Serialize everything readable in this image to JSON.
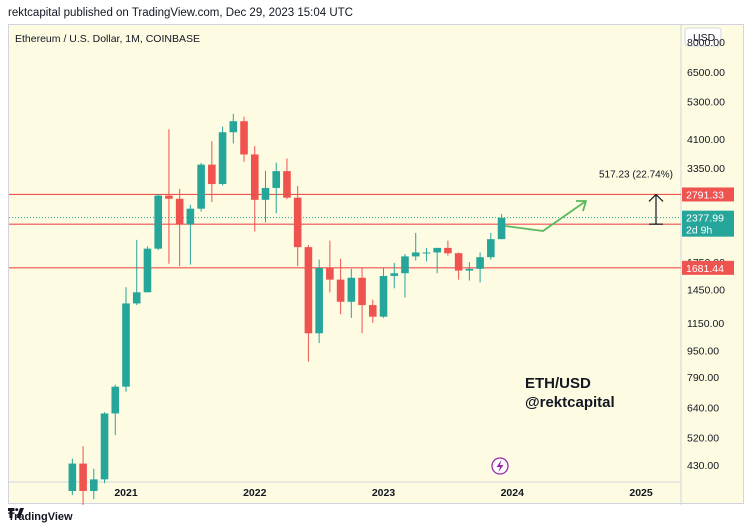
{
  "header": {
    "publish_line": "rektcapital published on TradingView.com, Dec 29, 2023 15:04 UTC"
  },
  "footer": {
    "brand": "TradingView"
  },
  "chart_data": {
    "type": "candlestick",
    "symbol_line": "Ethereum / U.S. Dollar, 1M, COINBASE",
    "currency": "USD",
    "y_scale": "log",
    "ylim": [
      370,
      9000
    ],
    "y_ticks": [
      8000,
      6500,
      5300,
      4100,
      3350,
      1450,
      1150,
      950,
      790,
      640,
      520,
      430
    ],
    "y_tick_labels": [
      "8000.00",
      "6500.00",
      "5300.00",
      "4100.00",
      "3350.00",
      "1450.00",
      "1150.00",
      "950.00",
      "790.00",
      "640.00",
      "520.00",
      "430.00"
    ],
    "x_ticks": [
      "2021",
      "2022",
      "2023",
      "2024",
      "2025"
    ],
    "horizontal_levels": [
      {
        "value": 2791.33,
        "label": "2791.33",
        "color": "#ef5350"
      },
      {
        "value": 2274.1,
        "label": "2274.10",
        "color": "#ef5350"
      },
      {
        "value": 1681.44,
        "label": "1681.44",
        "color": "#ef5350"
      }
    ],
    "current_price": {
      "value": 2377.99,
      "label": "2377.99",
      "countdown": "2d 9h",
      "color": "#26a69a"
    },
    "partial_hidden_label": "1750.00",
    "measure": {
      "label": "517.23 (22.74%)",
      "from": 2274.1,
      "to": 2791.33
    },
    "projection": {
      "color": "#5cb85c"
    },
    "annotation": {
      "line1": "ETH/USD",
      "line2": "@rektcapital"
    },
    "up_color": "#26a69a",
    "down_color": "#ef5350",
    "candles": [
      {
        "date": "2020-08",
        "o": 360,
        "h": 450,
        "l": 350,
        "c": 435
      },
      {
        "date": "2020-09",
        "o": 435,
        "h": 490,
        "l": 310,
        "c": 360
      },
      {
        "date": "2020-10",
        "o": 360,
        "h": 420,
        "l": 340,
        "c": 390
      },
      {
        "date": "2020-11",
        "o": 390,
        "h": 620,
        "l": 380,
        "c": 615
      },
      {
        "date": "2020-12",
        "o": 615,
        "h": 750,
        "l": 530,
        "c": 740
      },
      {
        "date": "2021-01",
        "o": 740,
        "h": 1470,
        "l": 715,
        "c": 1315
      },
      {
        "date": "2021-02",
        "o": 1315,
        "h": 2040,
        "l": 1300,
        "c": 1420
      },
      {
        "date": "2021-03",
        "o": 1420,
        "h": 1950,
        "l": 1430,
        "c": 1920
      },
      {
        "date": "2021-04",
        "o": 1920,
        "h": 2800,
        "l": 1900,
        "c": 2770
      },
      {
        "date": "2021-05",
        "o": 2770,
        "h": 4380,
        "l": 1730,
        "c": 2710
      },
      {
        "date": "2021-06",
        "o": 2710,
        "h": 2900,
        "l": 1700,
        "c": 2270
      },
      {
        "date": "2021-07",
        "o": 2270,
        "h": 2600,
        "l": 1720,
        "c": 2530
      },
      {
        "date": "2021-08",
        "o": 2530,
        "h": 3470,
        "l": 2480,
        "c": 3430
      },
      {
        "date": "2021-09",
        "o": 3430,
        "h": 4030,
        "l": 2650,
        "c": 3000
      },
      {
        "date": "2021-10",
        "o": 3000,
        "h": 4460,
        "l": 2970,
        "c": 4290
      },
      {
        "date": "2021-11",
        "o": 4290,
        "h": 4870,
        "l": 3970,
        "c": 4630
      },
      {
        "date": "2021-12",
        "o": 4630,
        "h": 4780,
        "l": 3500,
        "c": 3680
      },
      {
        "date": "2022-01",
        "o": 3680,
        "h": 3900,
        "l": 2160,
        "c": 2690
      },
      {
        "date": "2022-02",
        "o": 2690,
        "h": 3290,
        "l": 2300,
        "c": 2920
      },
      {
        "date": "2022-03",
        "o": 2920,
        "h": 3480,
        "l": 2450,
        "c": 3280
      },
      {
        "date": "2022-04",
        "o": 3280,
        "h": 3580,
        "l": 2700,
        "c": 2730
      },
      {
        "date": "2022-05",
        "o": 2730,
        "h": 2960,
        "l": 1700,
        "c": 1940
      },
      {
        "date": "2022-06",
        "o": 1940,
        "h": 1970,
        "l": 880,
        "c": 1070
      },
      {
        "date": "2022-07",
        "o": 1070,
        "h": 1780,
        "l": 1000,
        "c": 1680
      },
      {
        "date": "2022-08",
        "o": 1680,
        "h": 2030,
        "l": 1420,
        "c": 1550
      },
      {
        "date": "2022-09",
        "o": 1550,
        "h": 1790,
        "l": 1220,
        "c": 1330
      },
      {
        "date": "2022-10",
        "o": 1330,
        "h": 1670,
        "l": 1190,
        "c": 1570
      },
      {
        "date": "2022-11",
        "o": 1570,
        "h": 1680,
        "l": 1070,
        "c": 1300
      },
      {
        "date": "2022-12",
        "o": 1300,
        "h": 1350,
        "l": 1150,
        "c": 1200
      },
      {
        "date": "2023-01",
        "o": 1200,
        "h": 1680,
        "l": 1190,
        "c": 1590
      },
      {
        "date": "2023-02",
        "o": 1590,
        "h": 1740,
        "l": 1460,
        "c": 1620
      },
      {
        "date": "2023-03",
        "o": 1620,
        "h": 1850,
        "l": 1370,
        "c": 1820
      },
      {
        "date": "2023-04",
        "o": 1820,
        "h": 2140,
        "l": 1770,
        "c": 1870
      },
      {
        "date": "2023-05",
        "o": 1870,
        "h": 1930,
        "l": 1760,
        "c": 1870
      },
      {
        "date": "2023-06",
        "o": 1870,
        "h": 1930,
        "l": 1620,
        "c": 1930
      },
      {
        "date": "2023-07",
        "o": 1930,
        "h": 2030,
        "l": 1830,
        "c": 1860
      },
      {
        "date": "2023-08",
        "o": 1860,
        "h": 1870,
        "l": 1550,
        "c": 1650
      },
      {
        "date": "2023-09",
        "o": 1650,
        "h": 1750,
        "l": 1540,
        "c": 1670
      },
      {
        "date": "2023-10",
        "o": 1670,
        "h": 1870,
        "l": 1520,
        "c": 1810
      },
      {
        "date": "2023-11",
        "o": 1810,
        "h": 2140,
        "l": 1780,
        "c": 2050
      },
      {
        "date": "2023-12",
        "o": 2050,
        "h": 2440,
        "l": 2050,
        "c": 2377.99
      }
    ]
  }
}
